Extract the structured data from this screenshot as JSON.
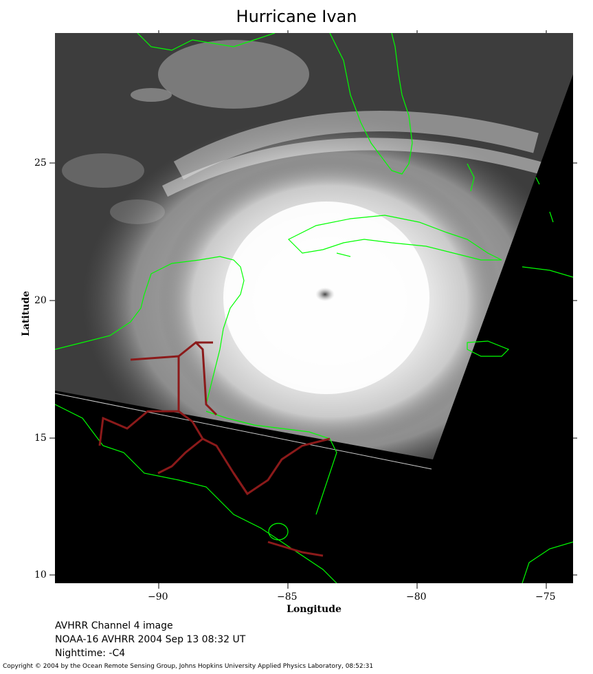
{
  "title": "Hurricane Ivan",
  "map": {
    "xlabel": "Longitude",
    "ylabel": "Latitude",
    "lon_range": [
      -94,
      -74
    ],
    "lat_range": [
      9.8,
      29.8
    ],
    "x_ticks": [
      "−90",
      "−85",
      "−80",
      "−75"
    ],
    "y_ticks": [
      "25",
      "20",
      "15",
      "10"
    ],
    "coastline_color": "#00ff00",
    "border_color": "#8b1a1a",
    "background_color": "#000000"
  },
  "caption": {
    "line1": "AVHRR Channel 4 image",
    "line2": "NOAA-16 AVHRR 2004 Sep 13 08:32 UT",
    "line3": "Nighttime: -C4"
  },
  "copyright": "Copyright © 2004 by the Ocean Remote Sensing Group, Johns Hopkins University Applied Physics Laboratory, 08:52:31"
}
